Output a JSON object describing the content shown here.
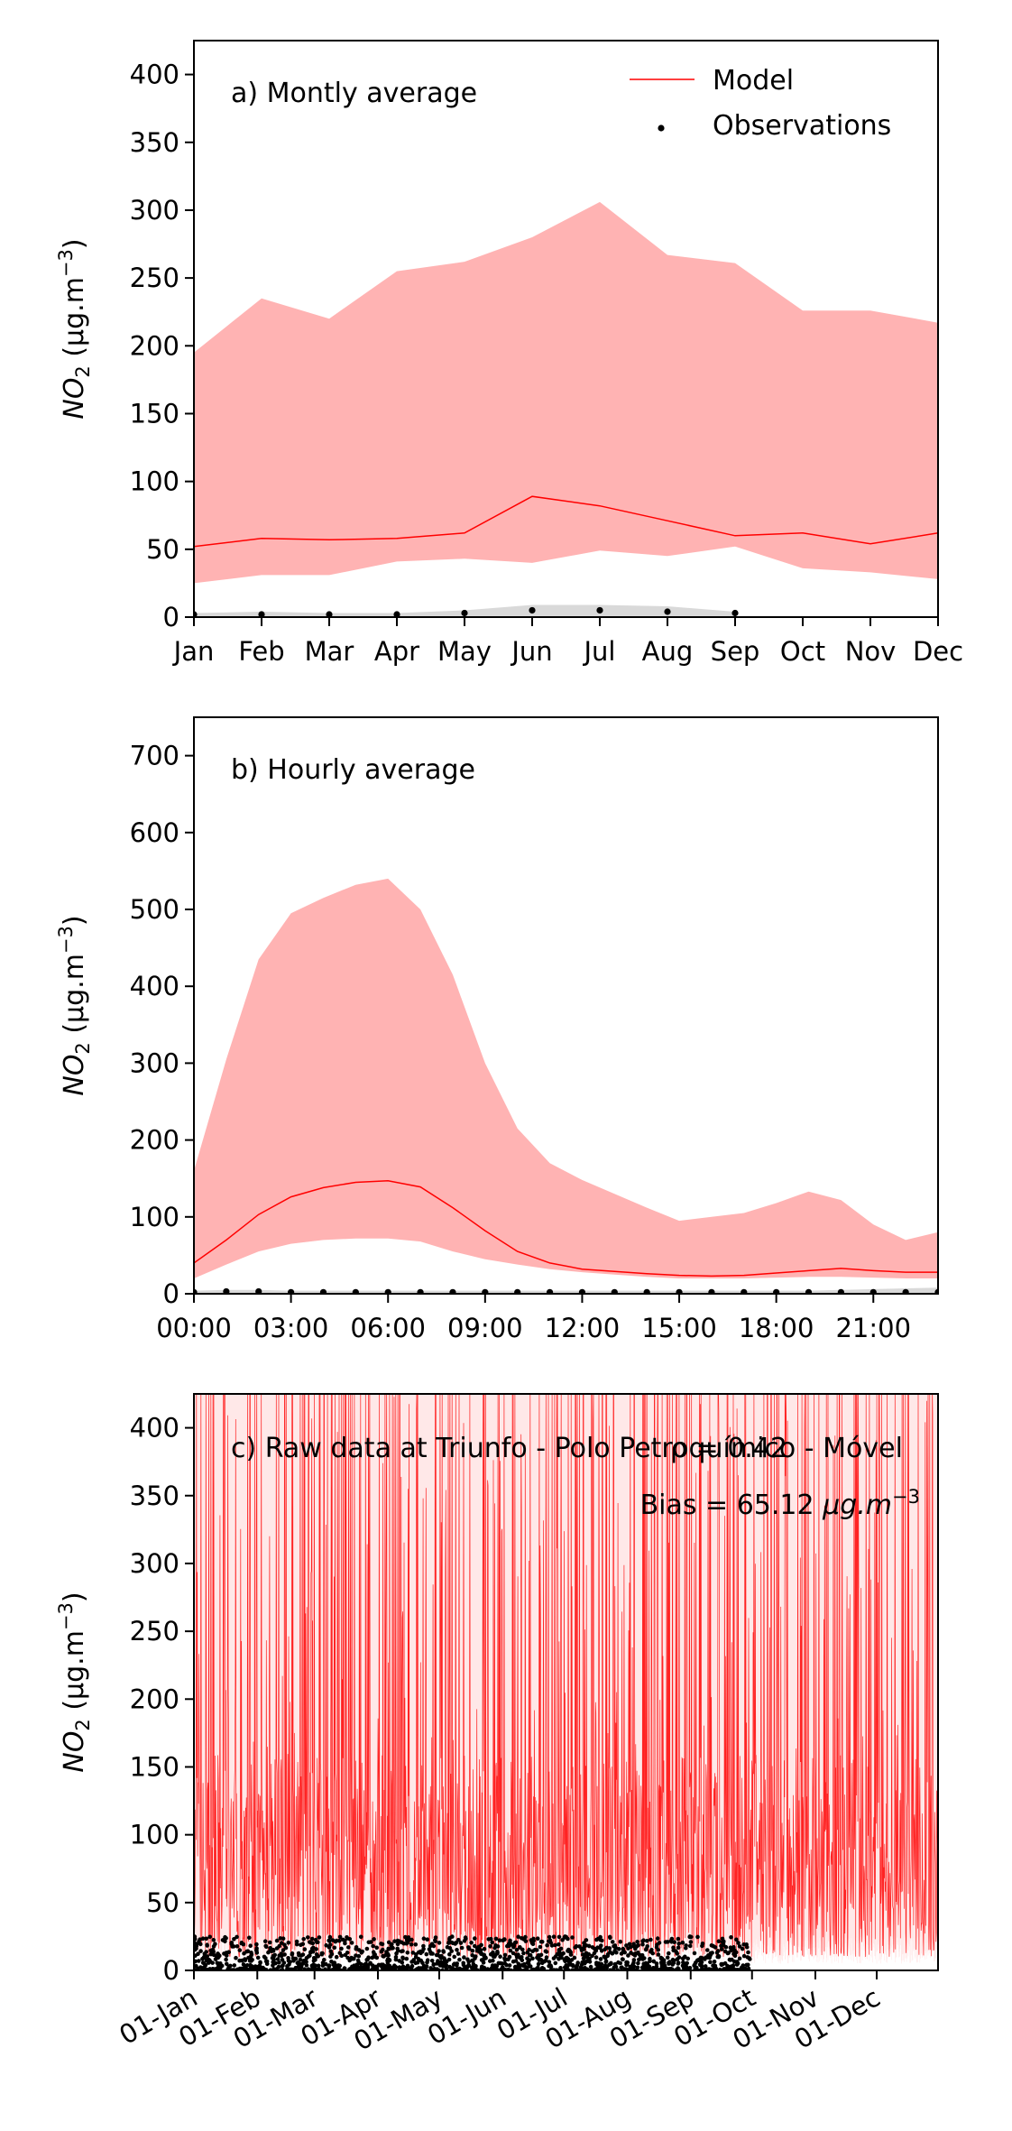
{
  "colors": {
    "model_line": "#ff0000",
    "model_band": "#ffb3b3",
    "obs_point": "#000000",
    "obs_band": "#d9d9d9",
    "raw_model_band": "#ffe8e8"
  },
  "chart_data": [
    {
      "type": "line",
      "panel_label": "a) Montly average",
      "ylabel": "NO2 (μg.m−3)",
      "ylabel_main": "NO",
      "ylabel_sub": "2",
      "ylabel_unit": " (μg.m",
      "ylabel_exp": "−3",
      "ylabel_close": ")",
      "xlabel": "",
      "ylim": [
        0,
        425
      ],
      "yticks": [
        "0",
        "50",
        "100",
        "150",
        "200",
        "250",
        "300",
        "350",
        "400"
      ],
      "categories": [
        "Jan",
        "Feb",
        "Mar",
        "Apr",
        "May",
        "Jun",
        "Jul",
        "Aug",
        "Sep",
        "Oct",
        "Nov",
        "Dec"
      ],
      "legend": {
        "position": "top-right",
        "entries": [
          "Model",
          "Observations"
        ]
      },
      "series": [
        {
          "name": "Model",
          "kind": "line",
          "values": [
            52,
            58,
            57,
            58,
            62,
            89,
            82,
            71,
            60,
            62,
            54,
            62
          ]
        },
        {
          "name": "Model range",
          "kind": "band",
          "lower": [
            25,
            31,
            31,
            41,
            43,
            40,
            49,
            45,
            52,
            36,
            33,
            28
          ],
          "upper": [
            195,
            235,
            220,
            255,
            262,
            280,
            306,
            267,
            261,
            226,
            226,
            217
          ]
        },
        {
          "name": "Observations",
          "kind": "points",
          "values": [
            2,
            2,
            2,
            2,
            3,
            5,
            5,
            4,
            3,
            null,
            null,
            null
          ]
        },
        {
          "name": "Observation range",
          "kind": "band",
          "lower": [
            0,
            0,
            0,
            0,
            0,
            0,
            0,
            0,
            0,
            null,
            null,
            null
          ],
          "upper": [
            3,
            4,
            3,
            3,
            5,
            9,
            9,
            8,
            4,
            null,
            null,
            null
          ]
        }
      ]
    },
    {
      "type": "line",
      "panel_label": "b) Hourly average",
      "ylabel": "NO2 (μg.m−3)",
      "ylabel_main": "NO",
      "ylabel_sub": "2",
      "ylabel_unit": " (μg.m",
      "ylabel_exp": "−3",
      "ylabel_close": ")",
      "xlabel": "",
      "ylim": [
        0,
        750
      ],
      "yticks": [
        "0",
        "100",
        "200",
        "300",
        "400",
        "500",
        "600",
        "700"
      ],
      "x": [
        0,
        1,
        2,
        3,
        4,
        5,
        6,
        7,
        8,
        9,
        10,
        11,
        12,
        13,
        14,
        15,
        16,
        17,
        18,
        19,
        20,
        21,
        22,
        23
      ],
      "xlim": [
        0,
        23
      ],
      "xtick_values": [
        0,
        3,
        6,
        9,
        12,
        15,
        18,
        21
      ],
      "xtick_labels": [
        "00:00",
        "03:00",
        "06:00",
        "09:00",
        "12:00",
        "15:00",
        "18:00",
        "21:00"
      ],
      "series": [
        {
          "name": "Model",
          "kind": "line",
          "values": [
            40,
            70,
            103,
            126,
            138,
            145,
            147,
            139,
            112,
            82,
            55,
            40,
            32,
            29,
            26,
            24,
            23,
            24,
            27,
            30,
            33,
            30,
            28,
            28
          ]
        },
        {
          "name": "Model range",
          "kind": "band",
          "lower": [
            20,
            38,
            55,
            65,
            70,
            72,
            72,
            68,
            55,
            45,
            38,
            32,
            28,
            25,
            22,
            20,
            20,
            20,
            21,
            22,
            22,
            21,
            20,
            20
          ],
          "upper": [
            160,
            305,
            435,
            495,
            515,
            532,
            540,
            500,
            415,
            300,
            215,
            170,
            148,
            130,
            112,
            95,
            100,
            105,
            118,
            133,
            122,
            90,
            70,
            80
          ]
        },
        {
          "name": "Observations",
          "kind": "points",
          "values": [
            2,
            3,
            3,
            2,
            2,
            2,
            2,
            2,
            2,
            2,
            2,
            2,
            2,
            2,
            2,
            2,
            2,
            2,
            2,
            2,
            2,
            2,
            2,
            2
          ]
        },
        {
          "name": "Observation range",
          "kind": "band",
          "lower": [
            0,
            0,
            0,
            0,
            0,
            0,
            0,
            0,
            0,
            0,
            0,
            0,
            0,
            0,
            0,
            0,
            0,
            0,
            0,
            0,
            0,
            0,
            0,
            0
          ],
          "upper": [
            4,
            5,
            5,
            4,
            4,
            4,
            4,
            4,
            4,
            4,
            4,
            4,
            4,
            4,
            4,
            4,
            4,
            4,
            4,
            4,
            5,
            6,
            7,
            8
          ]
        }
      ]
    },
    {
      "type": "line",
      "panel_label": "c) Raw data at Triunfo - Polo Petroquímico - Móvel",
      "stat_r": "ρ = 0.42",
      "stat_bias_prefix": "Bias = 65.12 ",
      "stat_bias_unit": "μg.m",
      "stat_bias_exp": "−3",
      "ylabel": "NO2 (μg.m−3)",
      "ylabel_main": "NO",
      "ylabel_sub": "2",
      "ylabel_unit": " (μg.m",
      "ylabel_exp": "−3",
      "ylabel_close": ")",
      "xlabel": "",
      "ylim": [
        0,
        425
      ],
      "yticks": [
        "0",
        "50",
        "100",
        "150",
        "200",
        "250",
        "300",
        "350",
        "400"
      ],
      "xlim": [
        "01-Jan",
        "31-Dec"
      ],
      "xtick_labels": [
        "01-Jan",
        "01-Feb",
        "01-Mar",
        "01-Apr",
        "01-May",
        "01-Jun",
        "01-Jul",
        "01-Aug",
        "01-Sep",
        "01-Oct",
        "01-Nov",
        "01-Dec"
      ],
      "xtick_dates": [
        "01-Jan",
        "01-Feb",
        "01-Mar",
        "01-Apr",
        "01-May",
        "01-Jun",
        "01-Jul",
        "01-Aug",
        "01-Sep",
        "01-Oct",
        "01-Nov",
        "01-Dec"
      ],
      "series": [
        {
          "name": "Model",
          "kind": "dense-line",
          "typical_range": [
            10,
            160
          ],
          "frequent_spikes_above": 425
        },
        {
          "name": "Observations",
          "kind": "dense-points",
          "typical_range": [
            0,
            25
          ],
          "date_range": [
            "01-Jan",
            "30-Sep"
          ]
        }
      ]
    }
  ]
}
